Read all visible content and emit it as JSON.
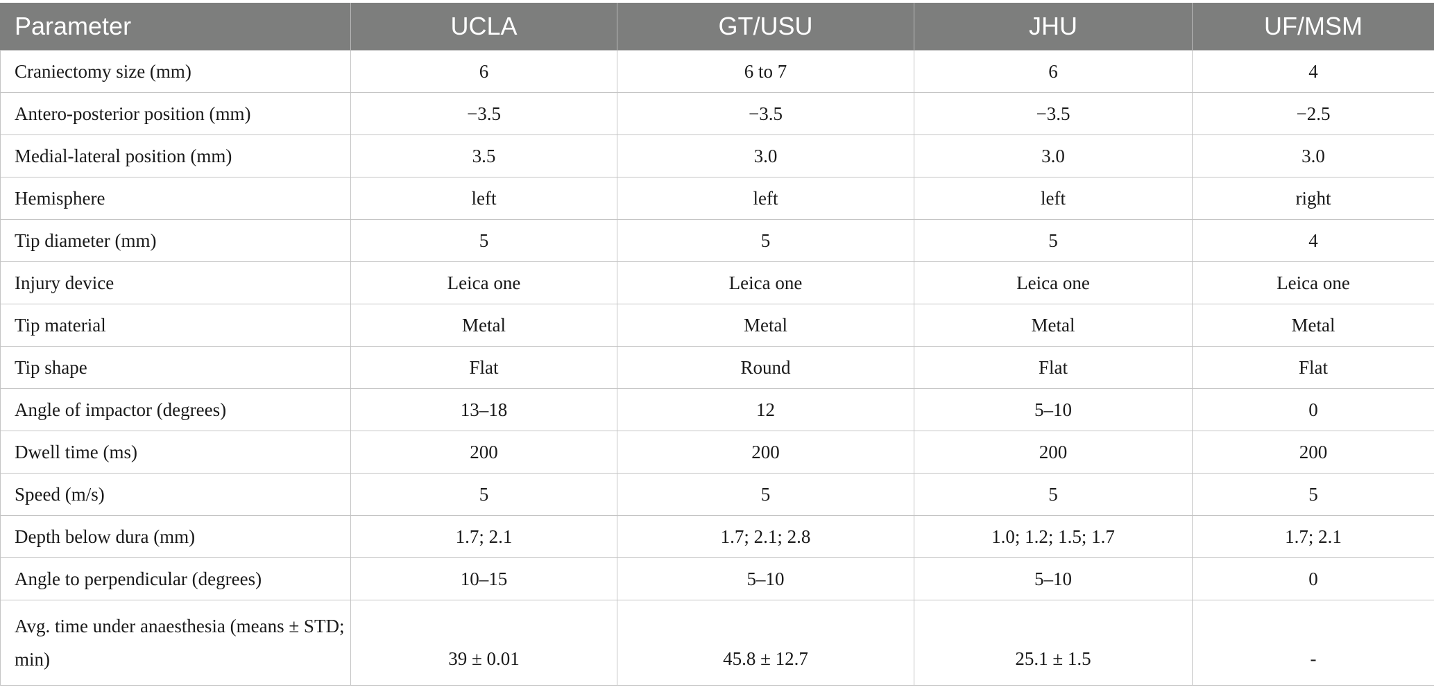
{
  "table": {
    "headers": [
      "Parameter",
      "UCLA",
      "GT/USU",
      "JHU",
      "UF/MSM"
    ],
    "rows": [
      [
        "Craniectomy size (mm)",
        "6",
        "6 to 7",
        "6",
        "4"
      ],
      [
        "Antero-posterior position (mm)",
        "−3.5",
        "−3.5",
        "−3.5",
        "−2.5"
      ],
      [
        "Medial-lateral position (mm)",
        "3.5",
        "3.0",
        "3.0",
        "3.0"
      ],
      [
        "Hemisphere",
        "left",
        "left",
        "left",
        "right"
      ],
      [
        "Tip diameter (mm)",
        "5",
        "5",
        "5",
        "4"
      ],
      [
        "Injury device",
        "Leica one",
        "Leica one",
        "Leica one",
        "Leica one"
      ],
      [
        "Tip material",
        "Metal",
        "Metal",
        "Metal",
        "Metal"
      ],
      [
        "Tip shape",
        "Flat",
        "Round",
        "Flat",
        "Flat"
      ],
      [
        "Angle of impactor (degrees)",
        "13–18",
        "12",
        "5–10",
        "0"
      ],
      [
        "Dwell time (ms)",
        "200",
        "200",
        "200",
        "200"
      ],
      [
        "Speed (m/s)",
        "5",
        "5",
        "5",
        "5"
      ],
      [
        "Depth below dura (mm)",
        "1.7; 2.1",
        "1.7; 2.1; 2.8",
        "1.0; 1.2; 1.5; 1.7",
        "1.7; 2.1"
      ],
      [
        "Angle to perpendicular (degrees)",
        "10–15",
        "5–10",
        "5–10",
        "0"
      ],
      [
        "Avg. time under anaesthesia (means ± STD; min)",
        "39 ± 0.01",
        "45.8 ± 12.7",
        "25.1 ± 1.5",
        "-"
      ]
    ]
  }
}
